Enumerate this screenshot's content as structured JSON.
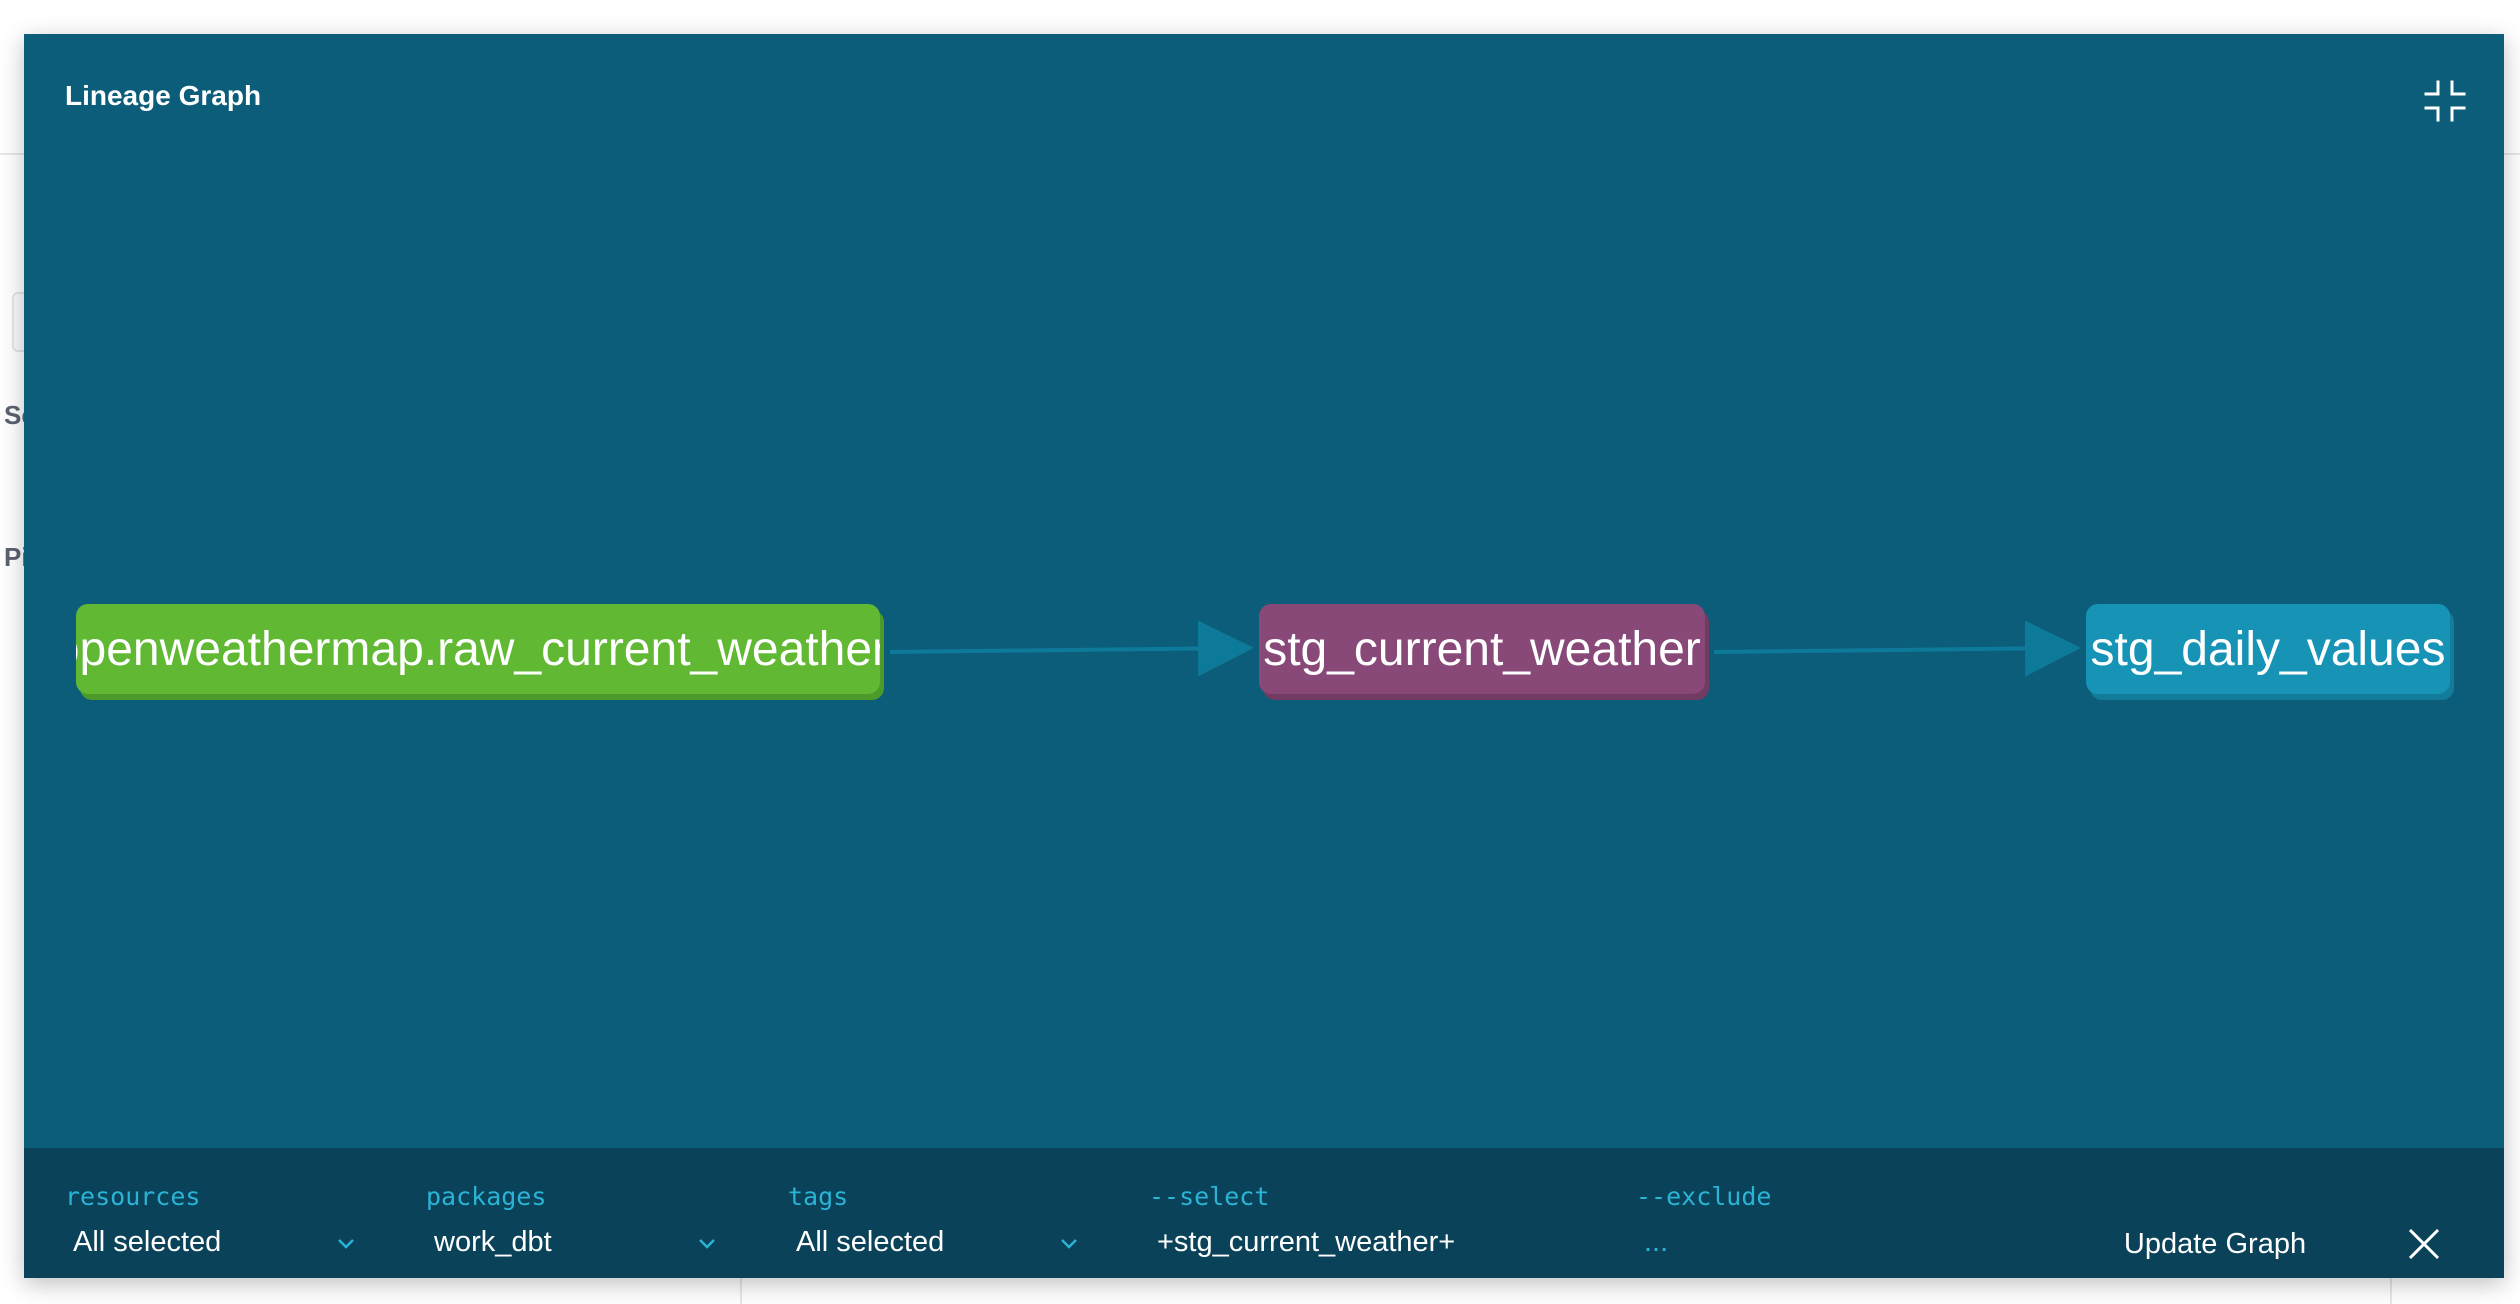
{
  "background": {
    "fragment_1": "Sc",
    "fragment_2": "Pi"
  },
  "modal": {
    "title": "Lineage Graph"
  },
  "graph": {
    "nodes": [
      {
        "label": "openweathermap.raw_current_weather",
        "type": "source",
        "color": "#60b833"
      },
      {
        "label": "stg_current_weather",
        "type": "model",
        "color": "#884878"
      },
      {
        "label": "stg_daily_values",
        "type": "model",
        "color": "#1793b6"
      }
    ],
    "edges": [
      {
        "from": "openweathermap.raw_current_weather",
        "to": "stg_current_weather"
      },
      {
        "from": "stg_current_weather",
        "to": "stg_daily_values"
      }
    ]
  },
  "filters": {
    "resources": {
      "label": "resources",
      "value": "All selected"
    },
    "packages": {
      "label": "packages",
      "value": "work_dbt"
    },
    "tags": {
      "label": "tags",
      "value": "All selected"
    },
    "select": {
      "label": "--select",
      "value": "+stg_current_weather+"
    },
    "exclude": {
      "label": "--exclude",
      "value": "..."
    }
  },
  "actions": {
    "update_label": "Update Graph"
  },
  "colors": {
    "modal_bg": "#0b5d79",
    "filter_bar_bg": "#0a4359",
    "accent": "#2bb3d6"
  },
  "icons": {
    "collapse": "collapse-icon",
    "close": "close-icon",
    "chevron": "chevron-down-icon"
  }
}
